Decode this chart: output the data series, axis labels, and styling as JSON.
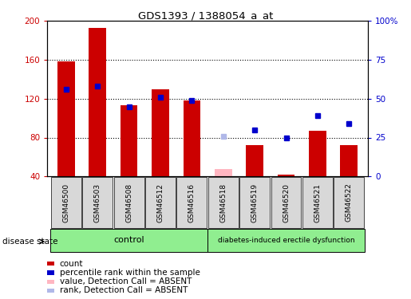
{
  "title": "GDS1393 / 1388054_a_at",
  "samples": [
    "GSM46500",
    "GSM46503",
    "GSM46508",
    "GSM46512",
    "GSM46516",
    "GSM46518",
    "GSM46519",
    "GSM46520",
    "GSM46521",
    "GSM46522"
  ],
  "bar_values": [
    158,
    193,
    113,
    130,
    118,
    null,
    72,
    42,
    87,
    72
  ],
  "bar_values_absent": [
    null,
    null,
    null,
    null,
    null,
    48,
    null,
    null,
    null,
    null
  ],
  "dot_pct": [
    56,
    58,
    45,
    51,
    49,
    null,
    30,
    25,
    39,
    34
  ],
  "dot_pct_absent": [
    null,
    null,
    null,
    null,
    null,
    26,
    null,
    null,
    null,
    null
  ],
  "bar_color": "#cc0000",
  "bar_color_absent": "#ffb6c1",
  "dot_color": "#0000cc",
  "dot_color_absent": "#b0b8e8",
  "ylim_left": [
    40,
    200
  ],
  "ylim_right": [
    0,
    100
  ],
  "yticks_left": [
    40,
    80,
    120,
    160,
    200
  ],
  "ytick_labels_left": [
    "40",
    "80",
    "120",
    "160",
    "200"
  ],
  "yticks_right": [
    0,
    25,
    50,
    75,
    100
  ],
  "ytick_labels_right": [
    "0",
    "25",
    "50",
    "75",
    "100%"
  ],
  "group_label_control": "control",
  "group_label_disease": "diabetes-induced erectile dysfunction",
  "disease_state_label": "disease state",
  "legend_items": [
    {
      "label": "count",
      "color": "#cc0000"
    },
    {
      "label": "percentile rank within the sample",
      "color": "#0000cc"
    },
    {
      "label": "value, Detection Call = ABSENT",
      "color": "#ffb6c1"
    },
    {
      "label": "rank, Detection Call = ABSENT",
      "color": "#b0b8e8"
    }
  ],
  "bar_width": 0.55
}
